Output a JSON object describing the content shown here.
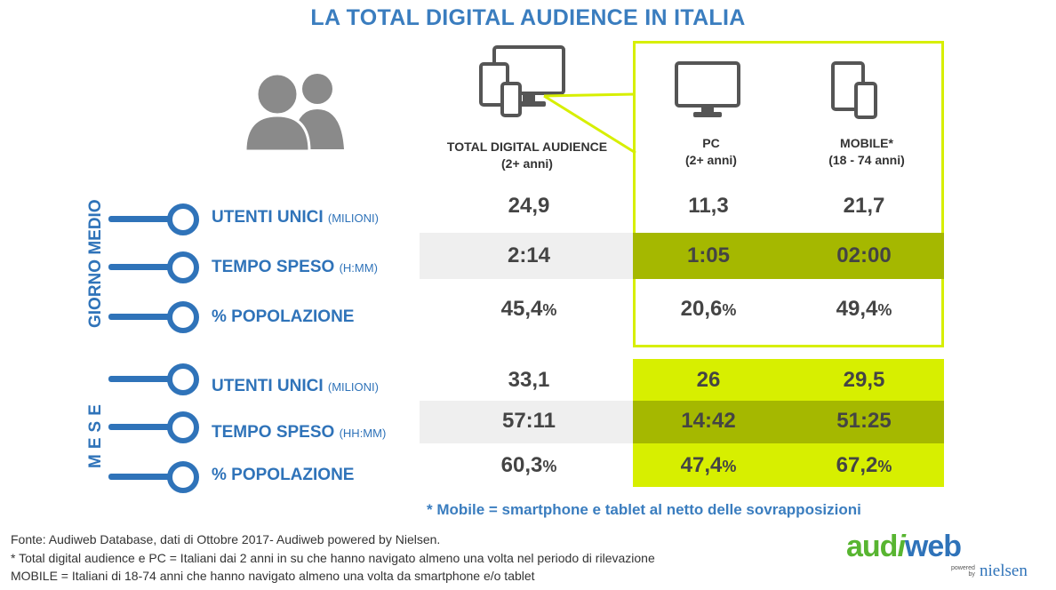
{
  "title": "LA TOTAL DIGITAL AUDIENCE IN ITALIA",
  "icons": {
    "users": "users-icon",
    "devices": "devices-icon",
    "pc": "monitor-icon",
    "mobile": "mobile-icon"
  },
  "columns": [
    {
      "label": "TOTAL DIGITAL AUDIENCE",
      "sub": "(2+ anni)"
    },
    {
      "label": "PC",
      "sub": "(2+ anni)"
    },
    {
      "label": "MOBILE*",
      "sub": "(18 - 74 anni)"
    }
  ],
  "sections": {
    "giorno_medio": "GIORNO MEDIO",
    "mese": "MESE"
  },
  "rows": [
    {
      "label": "UTENTI UNICI",
      "unit": "(MILIONI)",
      "values": [
        "24,9",
        "11,3",
        "21,7"
      ],
      "pct": [
        "",
        "",
        ""
      ]
    },
    {
      "label": "TEMPO SPESO",
      "unit": "(H:MM)",
      "values": [
        "2:14",
        "1:05",
        "02:00"
      ],
      "pct": [
        "",
        "",
        ""
      ]
    },
    {
      "label": "% POPOLAZIONE",
      "unit": "",
      "values": [
        "45,4",
        "20,6",
        "49,4"
      ],
      "pct": [
        "%",
        "%",
        "%"
      ]
    },
    {
      "label": "UTENTI UNICI",
      "unit": "(MILIONI)",
      "values": [
        "33,1",
        "26",
        "29,5"
      ],
      "pct": [
        "",
        "",
        ""
      ]
    },
    {
      "label": "TEMPO SPESO",
      "unit": "(HH:MM)",
      "values": [
        "57:11",
        "14:42",
        "51:25"
      ],
      "pct": [
        "",
        "",
        ""
      ]
    },
    {
      "label": "% POPOLAZIONE",
      "unit": "",
      "values": [
        "60,3",
        "47,4",
        "67,2"
      ],
      "pct": [
        "%",
        "%",
        "%"
      ]
    }
  ],
  "mobile_note": "* Mobile = smartphone e tablet al netto delle sovrapposizioni",
  "footer": {
    "source": "Fonte: Audiweb Database, dati di Ottobre 2017- Audiweb powered by Nielsen.",
    "note1": "* Total digital audience e PC = Italiani dai 2 anni in su che hanno navigato almeno una volta nel periodo di rilevazione",
    "note2": " MOBILE = Italiani di 18-74 anni che hanno navigato almeno una volta da smartphone e/o tablet"
  },
  "logo": {
    "audi": "aud",
    "i": "i",
    "web": "web",
    "powered": "powered",
    "by": "by",
    "nielsen": "nielsen"
  },
  "colors": {
    "title_blue": "#3a7dbf",
    "label_blue": "#2f73b9",
    "lime": "#d7ef00",
    "olive": "#a5b800",
    "grey_band": "#efefef"
  }
}
